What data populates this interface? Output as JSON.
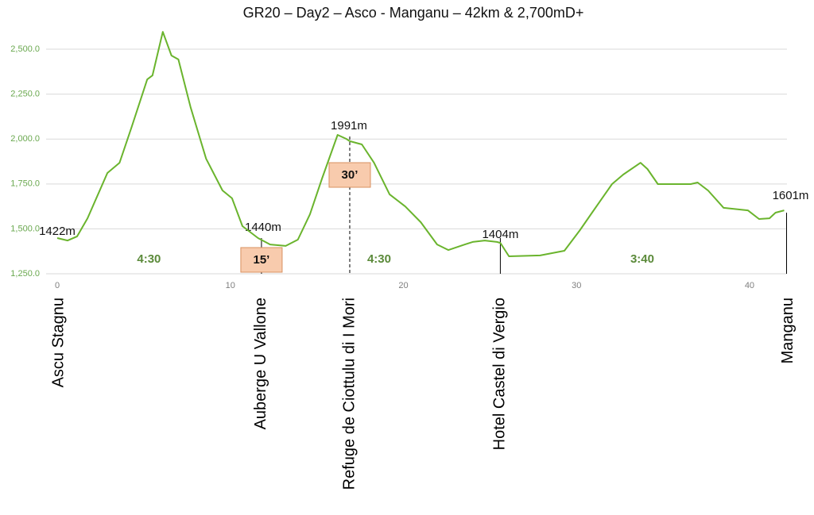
{
  "chart_data": {
    "type": "line",
    "title": "GR20 – Day2 – Asco - Manganu – 42km & 2,700mD+",
    "series": [
      {
        "name": "Elevation",
        "color": "#6ab42d",
        "x": [
          0,
          0.6,
          1.15,
          1.75,
          2.9,
          3.6,
          4.3,
          5.2,
          5.5,
          6.1,
          6.6,
          7.0,
          7.7,
          8.6,
          9.55,
          10.1,
          10.7,
          11.6,
          12.3,
          13.2,
          13.9,
          14.6,
          15.3,
          16.2,
          16.7,
          16.9,
          17.6,
          18.3,
          19.2,
          20.1,
          21.0,
          21.95,
          22.6,
          23.55,
          24.0,
          24.7,
          25.4,
          25.6,
          26.1,
          27.9,
          29.3,
          30.2,
          30.9,
          32.05,
          32.7,
          33.7,
          34.1,
          34.7,
          36.6,
          37.0,
          37.6,
          38.5,
          39.9,
          40.55,
          41.15,
          41.5,
          42.0
        ],
        "values": [
          1449,
          1435,
          1458,
          1559,
          1811,
          1868,
          2067,
          2332,
          2354,
          2597,
          2465,
          2443,
          2178,
          1890,
          1714,
          1670,
          1515,
          1449,
          1413,
          1405,
          1440,
          1581,
          1780,
          2023,
          2001,
          1988,
          1970,
          1868,
          1692,
          1625,
          1537,
          1413,
          1382,
          1413,
          1427,
          1435,
          1427,
          1422,
          1347,
          1352,
          1378,
          1493,
          1590,
          1749,
          1802,
          1868,
          1833,
          1749,
          1749,
          1758,
          1714,
          1617,
          1603,
          1555,
          1559,
          1590,
          1603
        ]
      }
    ],
    "xlim": [
      0,
      42
    ],
    "xticks": [
      0,
      10,
      20,
      30,
      40
    ],
    "ylim": [
      1250,
      2600
    ],
    "yticks": [
      {
        "value": 1250,
        "label": "1,250.0"
      },
      {
        "value": 1500,
        "label": "1,500.0"
      },
      {
        "value": 1750,
        "label": "1,750.0"
      },
      {
        "value": 2000,
        "label": "2,000.0"
      },
      {
        "value": 2250,
        "label": "2,250.0"
      },
      {
        "value": 2500,
        "label": "2,500.0"
      }
    ],
    "grid": true,
    "waypoints": [
      {
        "name": "Ascu Stagnu",
        "km": 0,
        "elevation": "1422m"
      },
      {
        "name": "Auberge U Vallone",
        "km": 11.8,
        "elevation": "1440m"
      },
      {
        "name": "Refuge de Ciottulu di I Mori",
        "km": 16.9,
        "elevation": "1991m"
      },
      {
        "name": "Hotel Castel di Vergio",
        "km": 25.6,
        "elevation": "1404m"
      },
      {
        "name": "Manganu",
        "km": 42,
        "elevation": "1601m"
      }
    ],
    "durations": [
      {
        "label": "4:30",
        "km": 5.3
      },
      {
        "label": "4:30",
        "km": 18.6
      },
      {
        "label": "3:40",
        "km": 33.8
      }
    ],
    "rests": [
      {
        "label": "15’",
        "km": 11.8
      },
      {
        "label": "30’",
        "km": 16.9
      }
    ]
  }
}
